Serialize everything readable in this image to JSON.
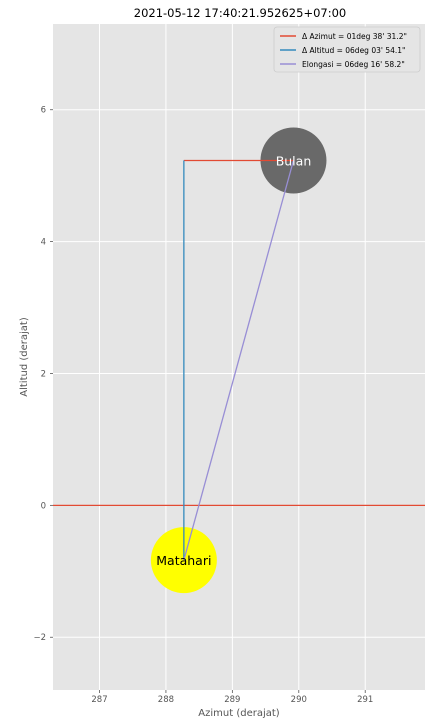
{
  "chart_data": {
    "type": "scatter",
    "title": "2021-05-12 17:40:21.952625+07:00",
    "xlabel": "Azimut (derajat)",
    "ylabel": "Altitud (derajat)",
    "xlim": [
      286.3,
      291.9
    ],
    "ylim": [
      -2.8,
      7.3
    ],
    "xticks": [
      287,
      288,
      289,
      290,
      291
    ],
    "yticks": [
      -2,
      0,
      2,
      4,
      6
    ],
    "grid": true,
    "legend_position": "top-right",
    "bodies": [
      {
        "name": "Matahari",
        "x": 288.27,
        "y": -0.83,
        "color": "#ffff00",
        "label_color": "#000000"
      },
      {
        "name": "Bulan",
        "x": 289.92,
        "y": 5.23,
        "color": "#696969",
        "label_color": "#ffffff"
      }
    ],
    "horizon": {
      "y": 0,
      "color": "#e24a33"
    },
    "series": [
      {
        "name": "Δ Azimut = 01deg 38' 31.2\"",
        "color": "#e24a33",
        "x": [
          288.27,
          289.92
        ],
        "y": [
          5.23,
          5.23
        ]
      },
      {
        "name": "Δ Altitud = 06deg 03' 54.1\"",
        "color": "#348abd",
        "x": [
          288.27,
          288.27
        ],
        "y": [
          -0.83,
          5.23
        ]
      },
      {
        "name": "Elongasi = 06deg 16' 58.2\"",
        "color": "#988ed5",
        "x": [
          288.27,
          289.92
        ],
        "y": [
          -0.83,
          5.23
        ]
      }
    ],
    "colors": {
      "plot_bg": "#e5e5e5",
      "grid": "#ffffff",
      "tick_text": "#555555"
    }
  }
}
